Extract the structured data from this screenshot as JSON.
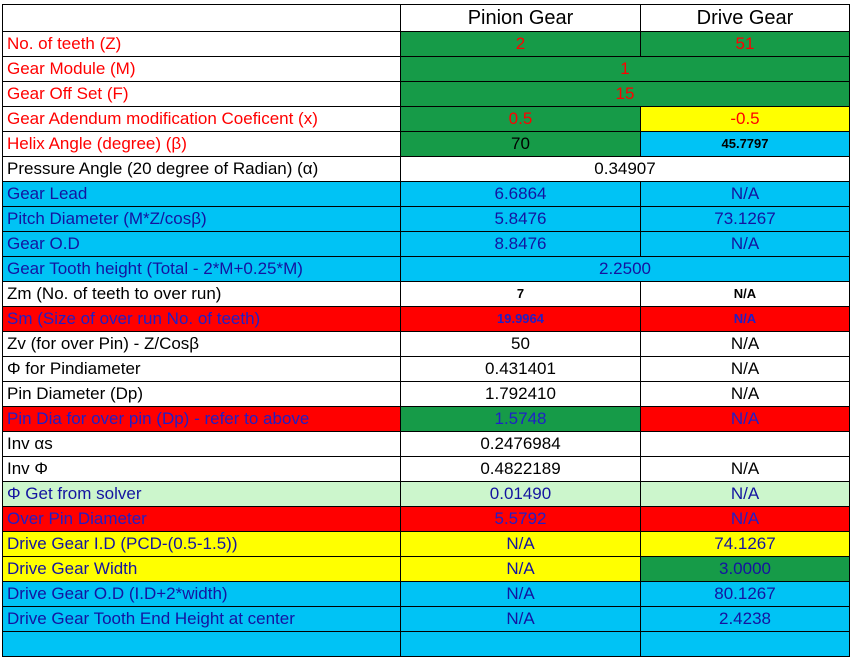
{
  "header": {
    "corner": "",
    "pinion": "Pinion Gear",
    "drive": "Drive Gear"
  },
  "rows": [
    {
      "label": "No. of teeth (Z)",
      "pinion": "2",
      "drive": "51"
    },
    {
      "label": "Gear Module (M)",
      "value": "1"
    },
    {
      "label": "Gear Off Set (F)",
      "value": "15"
    },
    {
      "label": "Gear Adendum modification Coeficent (x)",
      "pinion": "0.5",
      "drive": "-0.5"
    },
    {
      "label": "Helix Angle (degree) (β)",
      "pinion": "70",
      "drive": "45.7797"
    },
    {
      "label": "Pressure Angle (20 degree of Radian) (α)",
      "value": "0.34907"
    },
    {
      "label": "Gear Lead",
      "pinion": "6.6864",
      "drive": "N/A"
    },
    {
      "label": "Pitch Diameter (M*Z/cosβ)",
      "pinion": "5.8476",
      "drive": "73.1267"
    },
    {
      "label": "Gear O.D",
      "pinion": "8.8476",
      "drive": "N/A"
    },
    {
      "label": "Gear Tooth height (Total - 2*M+0.25*M)",
      "value": "2.2500"
    },
    {
      "label": "Zm (No. of teeth to over run)",
      "pinion": "7",
      "drive": "N/A"
    },
    {
      "label": "Sm (Size of over run No. of teeth)",
      "pinion": "19.9964",
      "drive": "N/A"
    },
    {
      "label": "Zv (for over Pin) - Z/Cosβ",
      "pinion": "50",
      "drive": "N/A"
    },
    {
      "label": "Φ for Pindiameter",
      "pinion": "0.431401",
      "drive": "N/A"
    },
    {
      "label": "Pin Diameter (Dp)",
      "pinion": "1.792410",
      "drive": "N/A"
    },
    {
      "label": "Pin Dia for over pin (Dp) - refer to above",
      "pinion": "1.5748",
      "drive": "N/A"
    },
    {
      "label": "Inv αs",
      "pinion": "0.2476984",
      "drive": ""
    },
    {
      "label": "Inv Φ",
      "pinion": "0.4822189",
      "drive": "N/A"
    },
    {
      "label": "Φ Get from solver",
      "pinion": "0.01490",
      "drive": "N/A"
    },
    {
      "label": "Over Pin Diameter",
      "pinion": "5.5792",
      "drive": "N/A"
    },
    {
      "label": "Drive Gear I.D (PCD-(0.5-1.5))",
      "pinion": "N/A",
      "drive": "74.1267"
    },
    {
      "label": "Drive Gear Width",
      "pinion": "N/A",
      "drive": "3.0000"
    },
    {
      "label": "Drive Gear O.D (I.D+2*width)",
      "pinion": "N/A",
      "drive": "80.1267"
    },
    {
      "label": "Drive Gear Tooth End Height at center",
      "pinion": "N/A",
      "drive": "2.4238"
    },
    {
      "label": "",
      "pinion": "",
      "drive": ""
    }
  ],
  "colors": {
    "green": "#169b48",
    "light_green": "#ccf6cc",
    "blue": "#00c3f5",
    "red": "#ff0000",
    "yellow": "#ffff00",
    "white": "#ffffff",
    "text_red": "#ff0000",
    "text_blue": "#1f1fc8"
  }
}
